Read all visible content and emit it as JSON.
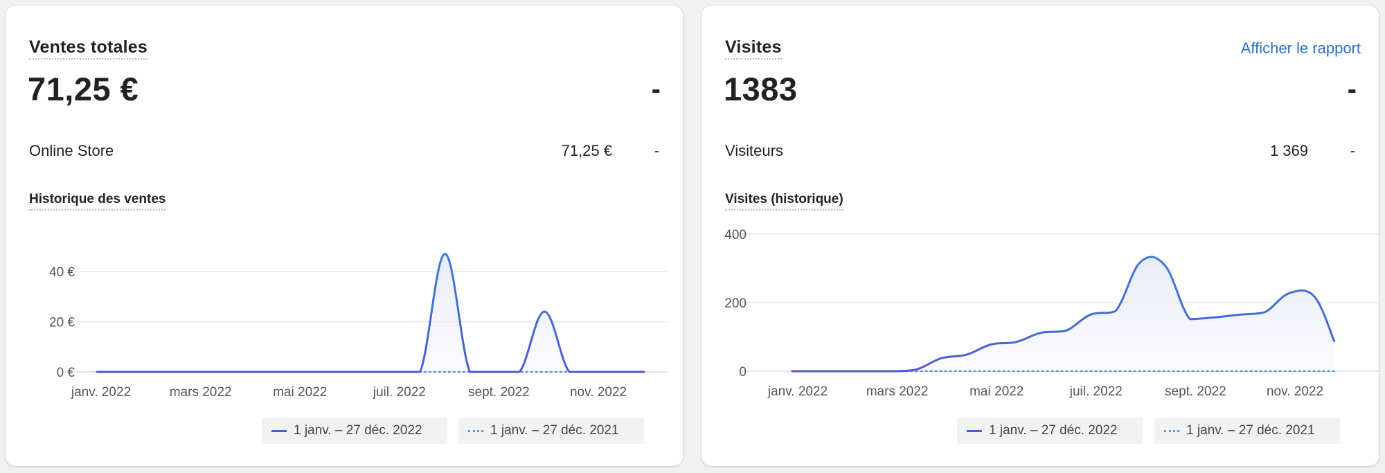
{
  "sales_card": {
    "title": "Ventes totales",
    "total": "71,25 €",
    "total_change": "-",
    "row": {
      "label": "Online Store",
      "value": "71,25 €",
      "change": "-"
    },
    "chart_title": "Historique des ventes",
    "legend": {
      "current": "1 janv. – 27 déc. 2022",
      "previous": "1 janv. – 27 déc. 2021"
    }
  },
  "visits_card": {
    "title": "Visites",
    "report_link": "Afficher le rapport",
    "total": "1383",
    "total_change": "-",
    "row": {
      "label": "Visiteurs",
      "value": "1 369",
      "change": "-"
    },
    "chart_title": "Visites (historique)",
    "legend": {
      "current": "1 janv. – 27 déc. 2022",
      "previous": "1 janv. – 27 déc. 2021"
    }
  },
  "colors": {
    "current_series": "#4b5bd7",
    "current_series_peak": "#3a7bd5",
    "previous_series": "#5a95e0",
    "link": "#2c6ecb"
  },
  "chart_data": [
    {
      "type": "area",
      "title": "Historique des ventes",
      "x_ticks": [
        "janv. 2022",
        "mars 2022",
        "mai 2022",
        "juil. 2022",
        "sept. 2022",
        "nov. 2022"
      ],
      "y_ticks": [
        "0 €",
        "20 €",
        "40 €"
      ],
      "ylim": [
        0,
        48
      ],
      "grid": true,
      "legend_position": "bottom",
      "series": [
        {
          "name": "1 janv. – 27 déc. 2022",
          "style": "solid",
          "x": [
            1,
            2,
            3,
            4,
            5,
            6,
            7,
            7.5,
            8,
            8.5,
            9,
            9.5,
            10,
            10.5,
            11,
            12
          ],
          "values": [
            0,
            0,
            0,
            0,
            0,
            0,
            0,
            0,
            47,
            0,
            0,
            0,
            24,
            0,
            0,
            0
          ]
        },
        {
          "name": "1 janv. – 27 déc. 2021",
          "style": "dotted",
          "x": [
            7,
            12
          ],
          "values": [
            0,
            0
          ]
        }
      ]
    },
    {
      "type": "area",
      "title": "Visites (historique)",
      "x_ticks": [
        "janv. 2022",
        "mars 2022",
        "mai 2022",
        "juil. 2022",
        "sept. 2022",
        "nov. 2022"
      ],
      "y_ticks": [
        "0",
        "200",
        "400"
      ],
      "ylim": [
        0,
        400
      ],
      "grid": true,
      "legend_position": "bottom",
      "series": [
        {
          "name": "1 janv. – 27 déc. 2022",
          "style": "solid",
          "x": [
            1,
            2,
            3,
            3.5,
            4,
            4.5,
            5,
            5.5,
            6,
            6.5,
            7,
            7.5,
            8,
            8.5,
            9,
            9.5,
            10,
            10.5,
            11,
            11.5,
            11.9
          ],
          "values": [
            0,
            0,
            0,
            5,
            38,
            48,
            78,
            85,
            112,
            118,
            165,
            175,
            318,
            308,
            152,
            157,
            165,
            172,
            228,
            218,
            88
          ]
        },
        {
          "name": "1 janv. – 27 déc. 2021",
          "style": "dotted",
          "x": [
            3,
            11.9
          ],
          "values": [
            0,
            0
          ]
        }
      ]
    }
  ]
}
